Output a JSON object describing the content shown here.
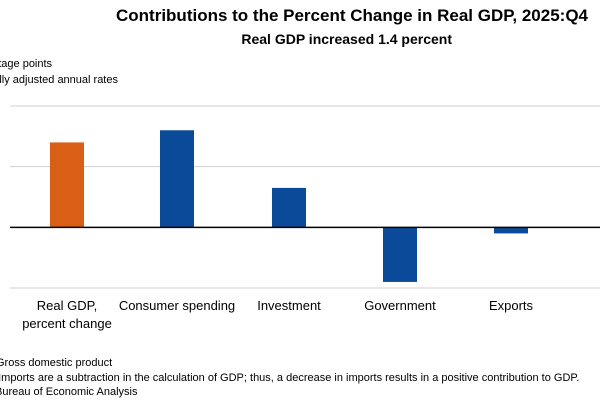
{
  "chart_data": {
    "type": "bar",
    "title": "Contributions to the Percent Change in Real GDP, 2025:Q4",
    "subtitle": "Real GDP increased 1.4 percent",
    "unit_lines": [
      "Percentage points",
      "Seasonally adjusted annual rates"
    ],
    "unit_lines_visible": [
      "entage points",
      "onally adjusted annual rates"
    ],
    "categories": [
      "Real GDP,\npercent change",
      "Consumer spending",
      "Investment",
      "Government",
      "Exports"
    ],
    "values": [
      1.4,
      1.6,
      0.65,
      -0.9,
      -0.1
    ],
    "bar_colors": [
      "#d95f17",
      "#0b4a98",
      "#0b4a98",
      "#0b4a98",
      "#0b4a98"
    ],
    "ylim": [
      -1.0,
      2.0
    ],
    "gridlines": [
      2.0,
      1.0,
      -1.0
    ],
    "grid": true,
    "legend": "none",
    "xlabel": "",
    "ylabel": "",
    "footnotes": [
      "Gross domestic product",
      ". Imports are a subtraction in the calculation of GDP; thus, a decrease in imports results in a positive contribution to GDP.",
      "Bureau of Economic Analysis"
    ]
  },
  "colors": {
    "highlight": "#d95f17",
    "series": "#0b4a98",
    "grid": "#d0d0d0",
    "zero_line": "#000000"
  }
}
